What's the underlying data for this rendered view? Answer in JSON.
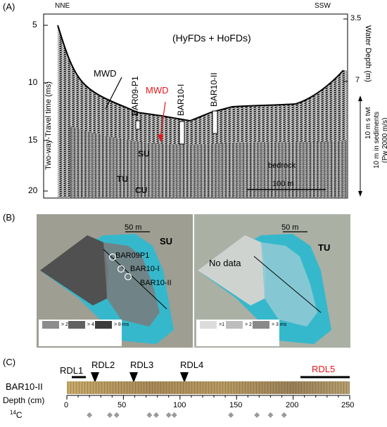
{
  "panel_a": {
    "label": "(A)",
    "direction_left": "NNE",
    "direction_right": "SSW",
    "y_axis_label": "Two-way-Travel time (ms)",
    "y_ticks": [
      "5",
      "10",
      "15",
      "20"
    ],
    "right_ticks": [
      "3.5",
      "7"
    ],
    "right_axis_label": "Water Depth (m)",
    "annotation_title": "(HyFDs + HoFDs)",
    "mwd_black": "MWD",
    "mwd_red": "MWD",
    "core_labels": [
      "BAR09-P1",
      "BAR10-I",
      "BAR10-II"
    ],
    "unit_labels": [
      "SU",
      "TU",
      "CU"
    ],
    "bedrock_label": "bedrock",
    "scale_label": "100 m",
    "vertical_scale_1": "10 m s twt",
    "vertical_scale_2": "10 m in sediments",
    "vertical_scale_3": "(Pw 2000 m/s)"
  },
  "panel_b": {
    "label": "(B)",
    "left_scale": "50 m",
    "left_unit": "SU",
    "left_cores": [
      "BAR09P1",
      "BAR10-I",
      "BAR10-II"
    ],
    "left_legend": [
      "> 2 ms",
      "> 4 ms",
      "> 8 ms"
    ],
    "right_scale": "50 m",
    "right_unit": "TU",
    "right_nodata": "No data",
    "right_legend": [
      ">1 ms",
      "> 2 ms",
      "> 3 ms"
    ]
  },
  "panel_c": {
    "label": "(C)",
    "rdl_labels": [
      "RDL1",
      "RDL2",
      "RDL3",
      "RDL4",
      "RDL5"
    ],
    "core_name": "BAR10-II",
    "depth_label": "Depth (cm)",
    "depth_ticks": [
      "0",
      "50",
      "100",
      "150",
      "200",
      "250"
    ],
    "c14_label": "14C",
    "c14_sup": "14",
    "c14_main": "C",
    "c14_depths_cm": [
      20,
      38,
      44,
      73,
      79,
      90,
      95,
      145,
      168,
      180,
      192
    ]
  },
  "colors": {
    "rdl5_red": "#e8161b",
    "mwd_red": "#e8161b",
    "lake_cyan": "#36b8cc",
    "dark_fill": "#505050",
    "core_brown": "#b09560"
  }
}
